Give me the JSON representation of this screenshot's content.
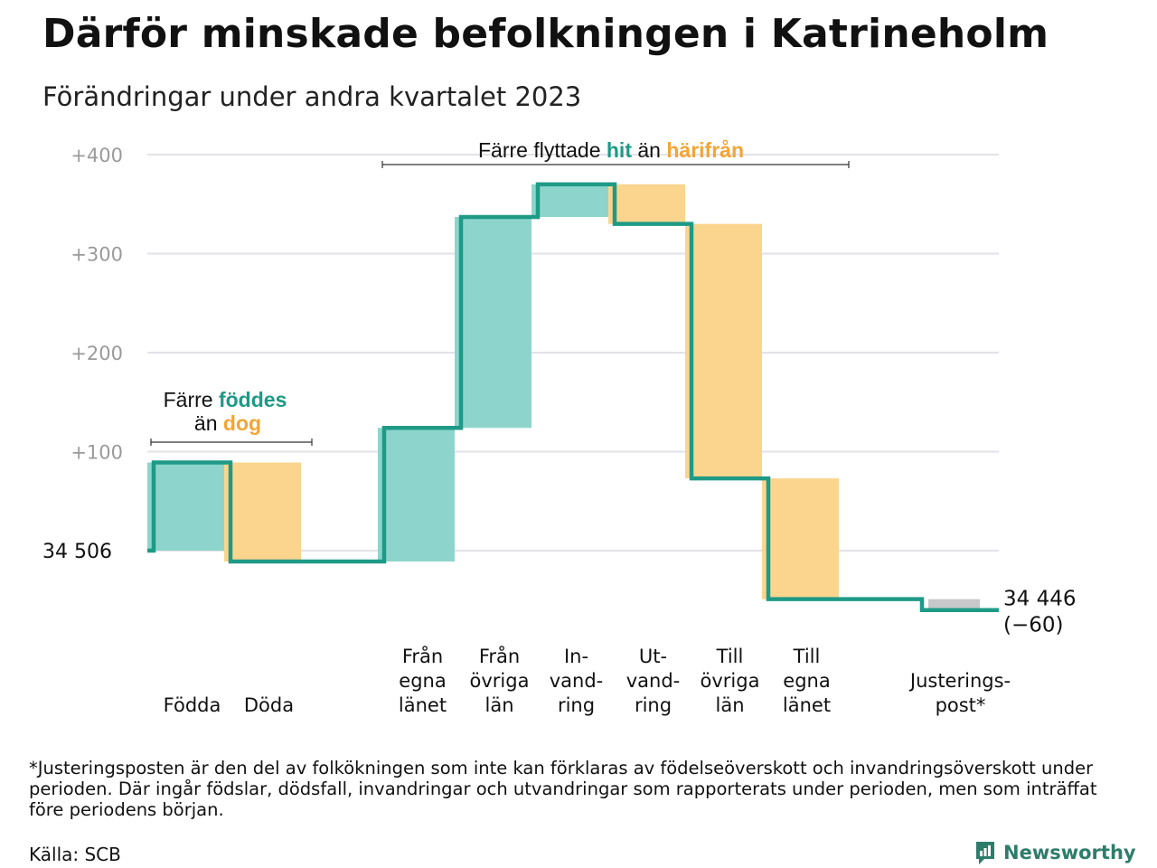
{
  "title": "Därför minskade befolkningen i Katrineholm",
  "subtitle": "Förändringar under andra kvartalet 2023",
  "footnote": "*Justeringsposten är den del av folkökningen som inte kan förklaras av födelseöverskott och invandringsöverskott under perioden. Där ingår födslar, dödsfall, invandringar och utvandringar som rapporterats under perioden, men som inträffat före periodens början.",
  "source": "Källa: SCB",
  "brand": "Newsworthy",
  "colors": {
    "increase": "#8dd5cc",
    "decrease": "#fbd58e",
    "adjustment": "#c8c8c8",
    "line": "#1e9a86",
    "accent_teal": "#1e9a86",
    "accent_orange": "#f4a534",
    "grid": "#e2e2e8",
    "tick": "#9a9a9a"
  },
  "annotations": {
    "birth": {
      "line1_prefix": "Färre ",
      "line1_highlight": "föddes",
      "line2_prefix": "än ",
      "line2_highlight": "dog"
    },
    "migration": {
      "prefix": "Färre flyttade ",
      "highlight1": "hit",
      "middle": " än ",
      "highlight2": "härifrån"
    }
  },
  "chart_data": {
    "type": "waterfall",
    "start_label": "34  506",
    "start_value": 34506,
    "end_label": "34 446",
    "end_change_label": "(−60)",
    "end_value": 34446,
    "ylim": [
      -60,
      400
    ],
    "yticks": [
      0,
      100,
      200,
      300,
      400
    ],
    "ytick_labels": [
      "",
      "+100",
      "+200",
      "+300",
      "+400"
    ],
    "grid": true,
    "steps": [
      {
        "label": [
          "Födda"
        ],
        "value": 89,
        "kind": "increase"
      },
      {
        "label": [
          "Döda"
        ],
        "value": -100,
        "kind": "decrease"
      },
      {
        "label": [
          ""
        ],
        "value": 0,
        "kind": "gap"
      },
      {
        "label": [
          "Från",
          "egna",
          "länet"
        ],
        "value": 135,
        "kind": "increase"
      },
      {
        "label": [
          "Från",
          "övriga",
          "län"
        ],
        "value": 213,
        "kind": "increase"
      },
      {
        "label": [
          "In-",
          "vand-",
          "ring"
        ],
        "value": 33,
        "kind": "increase"
      },
      {
        "label": [
          "Ut-",
          "vand-",
          "ring"
        ],
        "value": -40,
        "kind": "decrease"
      },
      {
        "label": [
          "Till",
          "övriga",
          "län"
        ],
        "value": -257,
        "kind": "decrease"
      },
      {
        "label": [
          "Till",
          "egna",
          "länet"
        ],
        "value": -122,
        "kind": "decrease"
      },
      {
        "label": [
          ""
        ],
        "value": 0,
        "kind": "gap"
      },
      {
        "label": [
          "Justerings-",
          "post*"
        ],
        "value": -11,
        "kind": "adjustment"
      }
    ]
  }
}
